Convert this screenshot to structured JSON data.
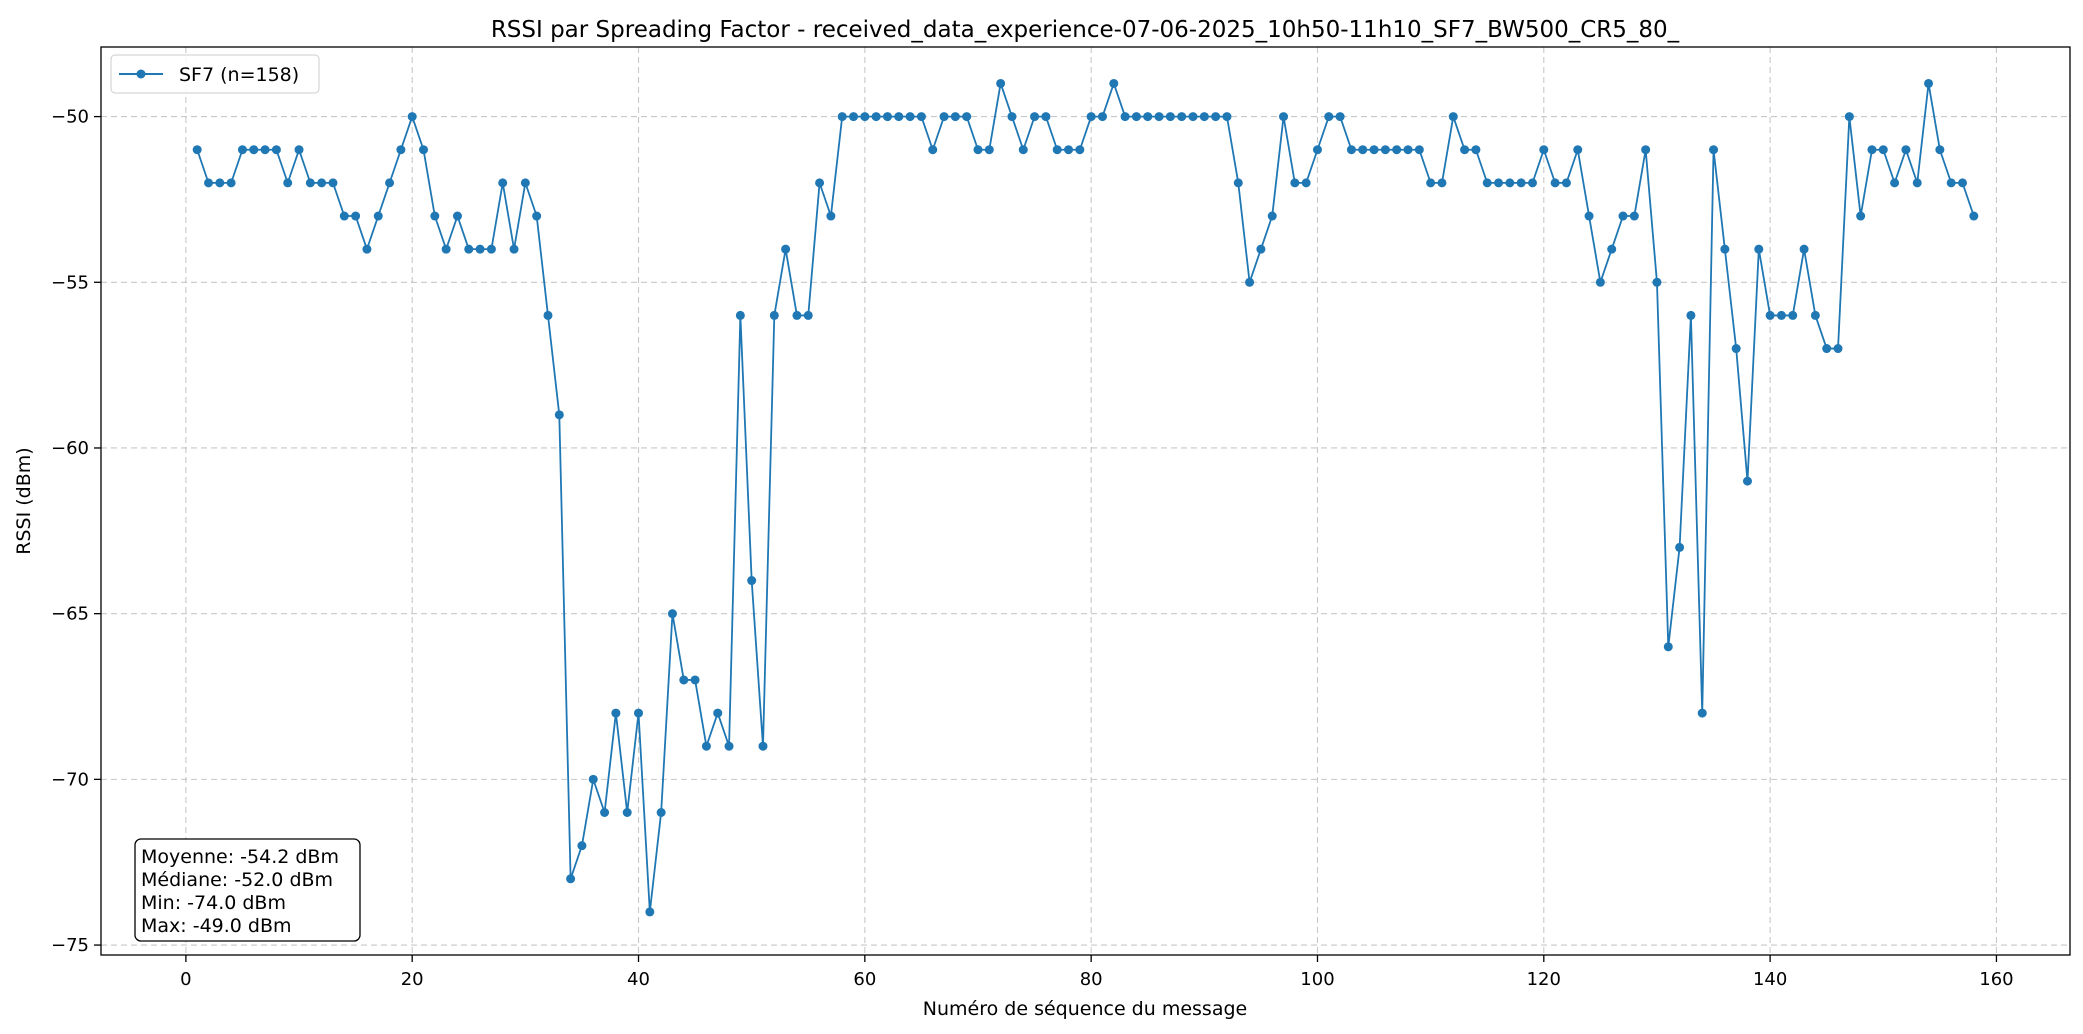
{
  "chart_data": {
    "type": "line",
    "title": "RSSI par Spreading Factor - received_data_experience-07-06-2025_10h50-11h10_SF7_BW500_CR5_80_",
    "xlabel": "Numéro de séquence du message",
    "ylabel": "RSSI (dBm)",
    "xlim": [
      -7.5,
      166.5
    ],
    "ylim": [
      -75.3,
      -47.9
    ],
    "xticks": [
      0,
      20,
      40,
      60,
      80,
      100,
      120,
      140,
      160
    ],
    "xtick_labels": [
      "0",
      "20",
      "40",
      "60",
      "80",
      "100",
      "120",
      "140",
      "160"
    ],
    "yticks": [
      -75,
      -70,
      -65,
      -60,
      -55,
      -50
    ],
    "ytick_labels": [
      "−75",
      "−70",
      "−65",
      "−60",
      "−55",
      "−50"
    ],
    "grid": true,
    "legend_position": "top-left",
    "series": [
      {
        "name": "SF7 (n=158)",
        "color": "#1f77b4",
        "marker": "circle",
        "x": [
          1,
          2,
          3,
          4,
          5,
          6,
          7,
          8,
          9,
          10,
          11,
          12,
          13,
          14,
          15,
          16,
          17,
          18,
          19,
          20,
          21,
          22,
          23,
          24,
          25,
          26,
          27,
          28,
          29,
          30,
          31,
          32,
          33,
          34,
          35,
          36,
          37,
          38,
          39,
          40,
          41,
          42,
          43,
          44,
          45,
          46,
          47,
          48,
          49,
          50,
          51,
          52,
          53,
          54,
          55,
          56,
          57,
          58,
          59,
          60,
          61,
          62,
          63,
          64,
          65,
          66,
          67,
          68,
          69,
          70,
          71,
          72,
          73,
          74,
          75,
          76,
          77,
          78,
          79,
          80,
          81,
          82,
          83,
          84,
          85,
          86,
          87,
          88,
          89,
          90,
          91,
          92,
          93,
          94,
          95,
          96,
          97,
          98,
          99,
          100,
          101,
          102,
          103,
          104,
          105,
          106,
          107,
          108,
          109,
          110,
          111,
          112,
          113,
          114,
          115,
          116,
          117,
          118,
          119,
          120,
          121,
          122,
          123,
          124,
          125,
          126,
          127,
          128,
          129,
          130,
          131,
          132,
          133,
          134,
          135,
          136,
          137,
          138,
          139,
          140,
          141,
          142,
          143,
          144,
          145,
          146,
          147,
          148,
          149,
          150,
          151,
          152,
          153,
          154,
          155,
          156,
          157,
          158
        ],
        "y": [
          -51,
          -52,
          -52,
          -52,
          -51,
          -51,
          -51,
          -51,
          -52,
          -51,
          -52,
          -52,
          -52,
          -53,
          -53,
          -54,
          -53,
          -52,
          -51,
          -50,
          -51,
          -53,
          -54,
          -53,
          -54,
          -54,
          -54,
          -52,
          -54,
          -52,
          -53,
          -56,
          -59,
          -73,
          -72,
          -70,
          -71,
          -68,
          -71,
          -68,
          -74,
          -71,
          -65,
          -67,
          -67,
          -69,
          -68,
          -69,
          -56,
          -64,
          -69,
          -56,
          -54,
          -56,
          -56,
          -52,
          -53,
          -50,
          -50,
          -50,
          -50,
          -50,
          -50,
          -50,
          -50,
          -51,
          -50,
          -50,
          -50,
          -51,
          -51,
          -49,
          -50,
          -51,
          -50,
          -50,
          -51,
          -51,
          -51,
          -50,
          -50,
          -49,
          -50,
          -50,
          -50,
          -50,
          -50,
          -50,
          -50,
          -50,
          -50,
          -50,
          -52,
          -55,
          -54,
          -53,
          -50,
          -52,
          -52,
          -51,
          -50,
          -50,
          -51,
          -51,
          -51,
          -51,
          -51,
          -51,
          -51,
          -52,
          -52,
          -50,
          -51,
          -51,
          -52,
          -52,
          -52,
          -52,
          -52,
          -51,
          -52,
          -52,
          -51,
          -53,
          -55,
          -54,
          -53,
          -53,
          -51,
          -55,
          -66,
          -63,
          -56,
          -68,
          -51,
          -54,
          -57,
          -61,
          -54,
          -56,
          -56,
          -56,
          -54,
          -56,
          -57,
          -57,
          -50,
          -53,
          -51,
          -51,
          -52,
          -51,
          -52,
          -49,
          -51,
          -52,
          -52,
          -53
        ]
      }
    ],
    "annotations": {
      "stats_box": [
        "Moyenne: -54.2 dBm",
        "Médiane: -52.0 dBm",
        "Min: -74.0 dBm",
        "Max: -49.0 dBm"
      ]
    }
  }
}
